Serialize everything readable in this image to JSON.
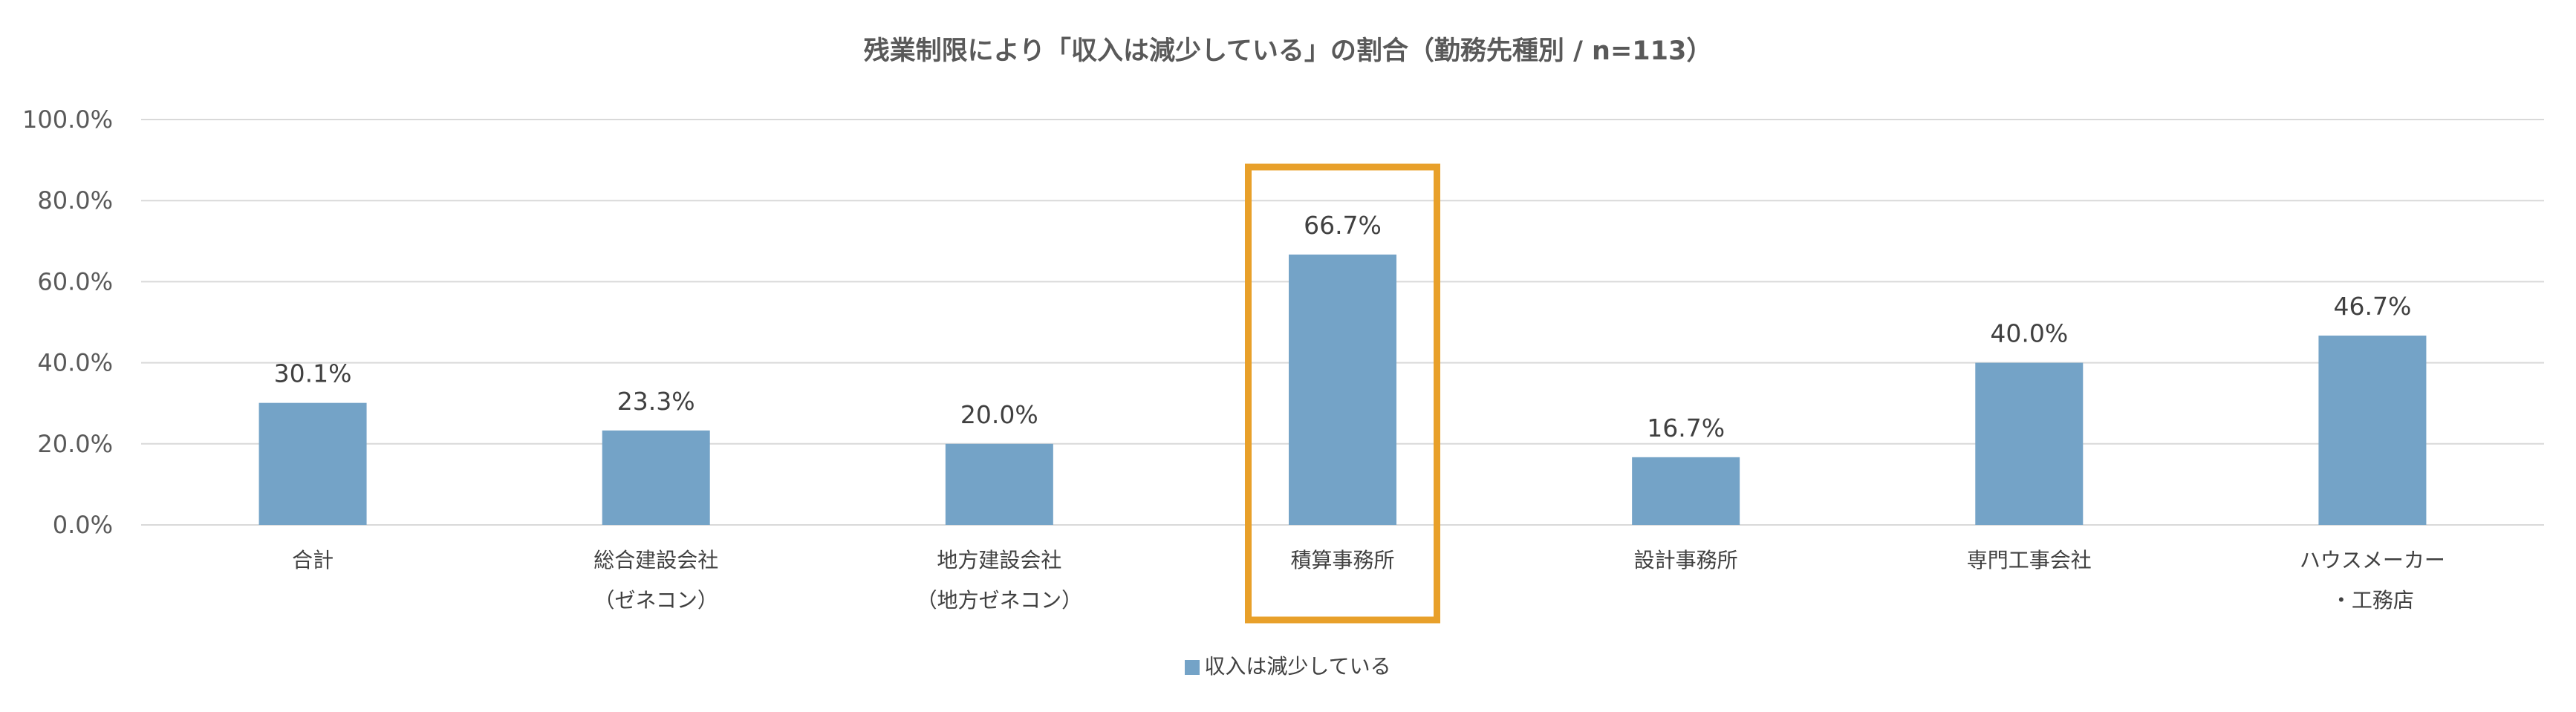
{
  "chart_data": {
    "type": "bar",
    "title": "残業制限により「収入は減少している」の割合（勤務先種別 / n=113）",
    "categories": [
      [
        "合計"
      ],
      [
        "総合建設会社",
        "（ゼネコン）"
      ],
      [
        "地方建設会社",
        "（地方ゼネコン）"
      ],
      [
        "積算事務所"
      ],
      [
        "設計事務所"
      ],
      [
        "専門工事会社"
      ],
      [
        "ハウスメーカー",
        "・工務店"
      ]
    ],
    "series": [
      {
        "name": "収入は減少している",
        "values": [
          30.1,
          23.3,
          20.0,
          66.7,
          16.7,
          40.0,
          46.7
        ],
        "data_labels": [
          "30.1%",
          "23.3%",
          "20.0%",
          "66.7%",
          "16.7%",
          "40.0%",
          "46.7%"
        ]
      }
    ],
    "ylim": [
      0,
      100
    ],
    "yticks": [
      "0.0%",
      "20.0%",
      "40.0%",
      "60.0%",
      "80.0%",
      "100.0%"
    ],
    "grid": true,
    "legend_position": "bottom",
    "highlighted_category_index": 3,
    "colors": {
      "bar": "#74A3C7",
      "highlight": "#E8A02A",
      "grid": "#D9D9D9"
    }
  }
}
